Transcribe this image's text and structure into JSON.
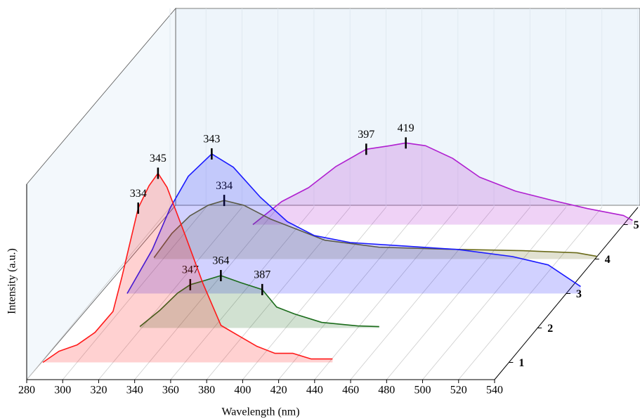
{
  "chart_data": {
    "type": "waterfall",
    "x_label": "Wavelength (nm)",
    "y_label": "Intensity (a.u.)",
    "xlim": [
      280,
      540
    ],
    "xticks": [
      280,
      300,
      320,
      340,
      360,
      380,
      400,
      420,
      440,
      460,
      480,
      500,
      520,
      540
    ],
    "ylim": [
      0,
      280
    ],
    "grid": true,
    "series": [
      {
        "name": "1",
        "color": "#ff1a1a",
        "x": [
          281,
          290,
          300,
          310,
          320,
          325,
          334,
          340,
          345,
          350,
          360,
          370,
          380,
          390,
          400,
          410,
          420,
          430,
          442
        ],
        "values": [
          0,
          16,
          25,
          43,
          73,
          123,
          221,
          253,
          271,
          251,
          183,
          113,
          53,
          38,
          23,
          13,
          13,
          5,
          5
        ],
        "peaks": [
          334,
          345
        ]
      },
      {
        "name": "2",
        "color": "#1a6b1a",
        "x": [
          319,
          330,
          340,
          347,
          355,
          364,
          375,
          387,
          395,
          405,
          420,
          440,
          452
        ],
        "values": [
          2,
          25,
          50,
          62,
          68,
          75,
          65,
          55,
          30,
          20,
          8,
          3,
          2
        ],
        "peaks": [
          347,
          364,
          387
        ]
      },
      {
        "name": "3",
        "color": "#1a1aff",
        "x": [
          296,
          310,
          320,
          330,
          343,
          355,
          370,
          385,
          400,
          420,
          450,
          480,
          510,
          530,
          548
        ],
        "values": [
          0,
          63,
          123,
          168,
          200,
          181,
          138,
          103,
          83,
          73,
          68,
          63,
          53,
          41,
          10
        ],
        "peaks": [
          343
        ]
      },
      {
        "name": "4",
        "color": "#6b6b1a",
        "x": [
          295,
          305,
          315,
          325,
          334,
          345,
          360,
          375,
          390,
          420,
          460,
          500,
          530,
          541
        ],
        "values": [
          2,
          37,
          62,
          77,
          84,
          77,
          57,
          42,
          27,
          17,
          14,
          12,
          9,
          4
        ],
        "peaks": [
          334
        ]
      },
      {
        "name": "5",
        "color": "#b020d0",
        "x": [
          334,
          350,
          365,
          380,
          397,
          410,
          419,
          430,
          445,
          460,
          480,
          500,
          520,
          540,
          545
        ],
        "values": [
          0,
          33,
          53,
          83,
          108,
          113,
          117,
          113,
          95,
          68,
          48,
          35,
          23,
          13,
          6
        ],
        "peaks": [
          397,
          419
        ]
      }
    ]
  }
}
